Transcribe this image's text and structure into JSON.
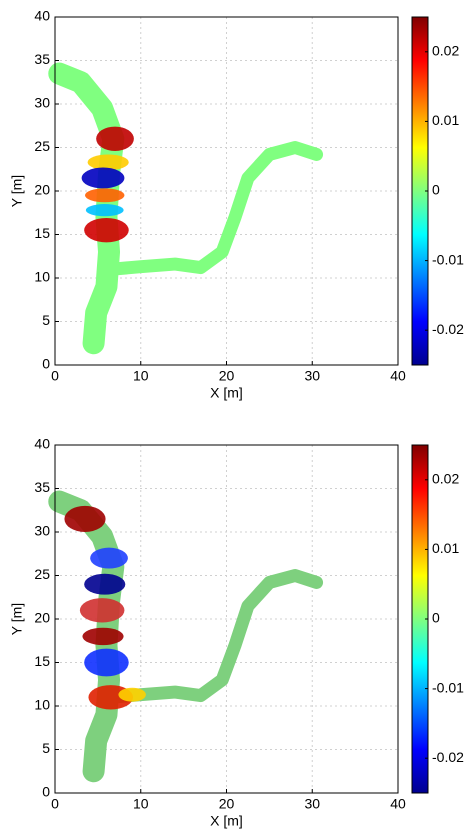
{
  "chart_data": [
    {
      "type": "field",
      "xlabel": "X [m]",
      "ylabel": "Y [m]",
      "xlim": [
        0,
        40
      ],
      "ylim": [
        0,
        40
      ],
      "xticks": [
        0,
        10,
        20,
        30,
        40
      ],
      "yticks": [
        0,
        5,
        10,
        15,
        20,
        25,
        30,
        35,
        40
      ],
      "clim": [
        -0.025,
        0.025
      ],
      "cticks": [
        -0.02,
        -0.01,
        0,
        0.01,
        0.02
      ],
      "grid": true
    },
    {
      "type": "field",
      "xlabel": "X [m]",
      "ylabel": "Y [m]",
      "xlim": [
        0,
        40
      ],
      "ylim": [
        0,
        40
      ],
      "xticks": [
        0,
        10,
        20,
        30,
        40
      ],
      "yticks": [
        0,
        5,
        10,
        15,
        20,
        25,
        30,
        35,
        40
      ],
      "clim": [
        -0.025,
        0.025
      ],
      "cticks": [
        -0.02,
        -0.01,
        0,
        0.01,
        0.02
      ],
      "grid": true
    }
  ]
}
